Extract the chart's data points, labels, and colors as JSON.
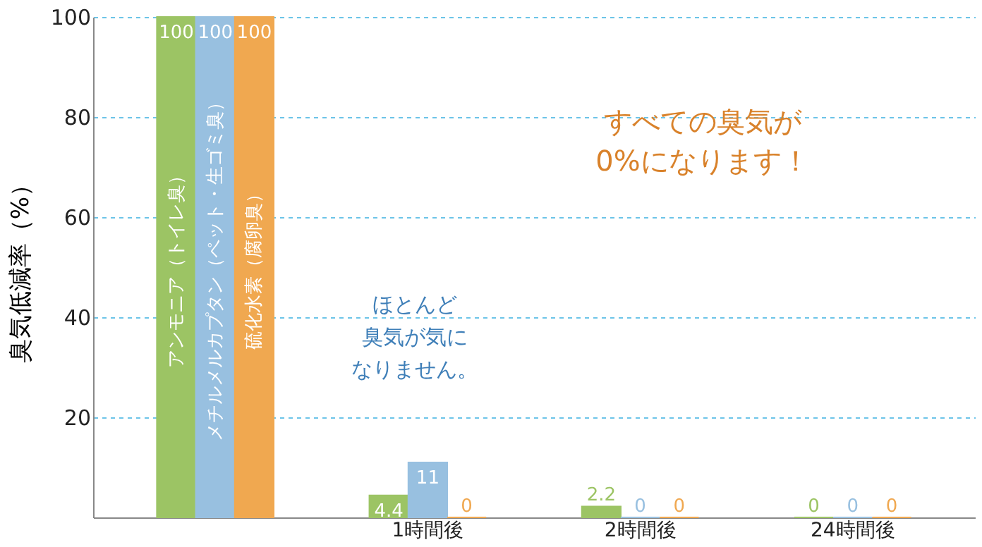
{
  "chart_data": {
    "type": "bar",
    "categories": [
      null,
      "1時間後",
      "2時間後",
      "24時間後"
    ],
    "series": [
      {
        "name": "アンモニア（トイレ臭）",
        "color": "#9cc464",
        "values": [
          100,
          4.4,
          2.2,
          0
        ]
      },
      {
        "name": "メチルメルカプタン（ペット・生ゴミ臭）",
        "color": "#98c0e0",
        "values": [
          100,
          11,
          0,
          0
        ]
      },
      {
        "name": "硫化水素（腐卵臭）",
        "color": "#f0a850",
        "values": [
          100,
          0,
          0,
          0
        ]
      }
    ],
    "ylabel": "臭気低減率（%）",
    "ylim": [
      0,
      100
    ],
    "yticks": [
      20,
      40,
      60,
      80,
      100
    ],
    "grid": "y",
    "legend": false,
    "data_labels": true,
    "annotations": [
      "ほとんど臭気が気になりません。",
      "すべての臭気が0%になります！"
    ]
  }
}
